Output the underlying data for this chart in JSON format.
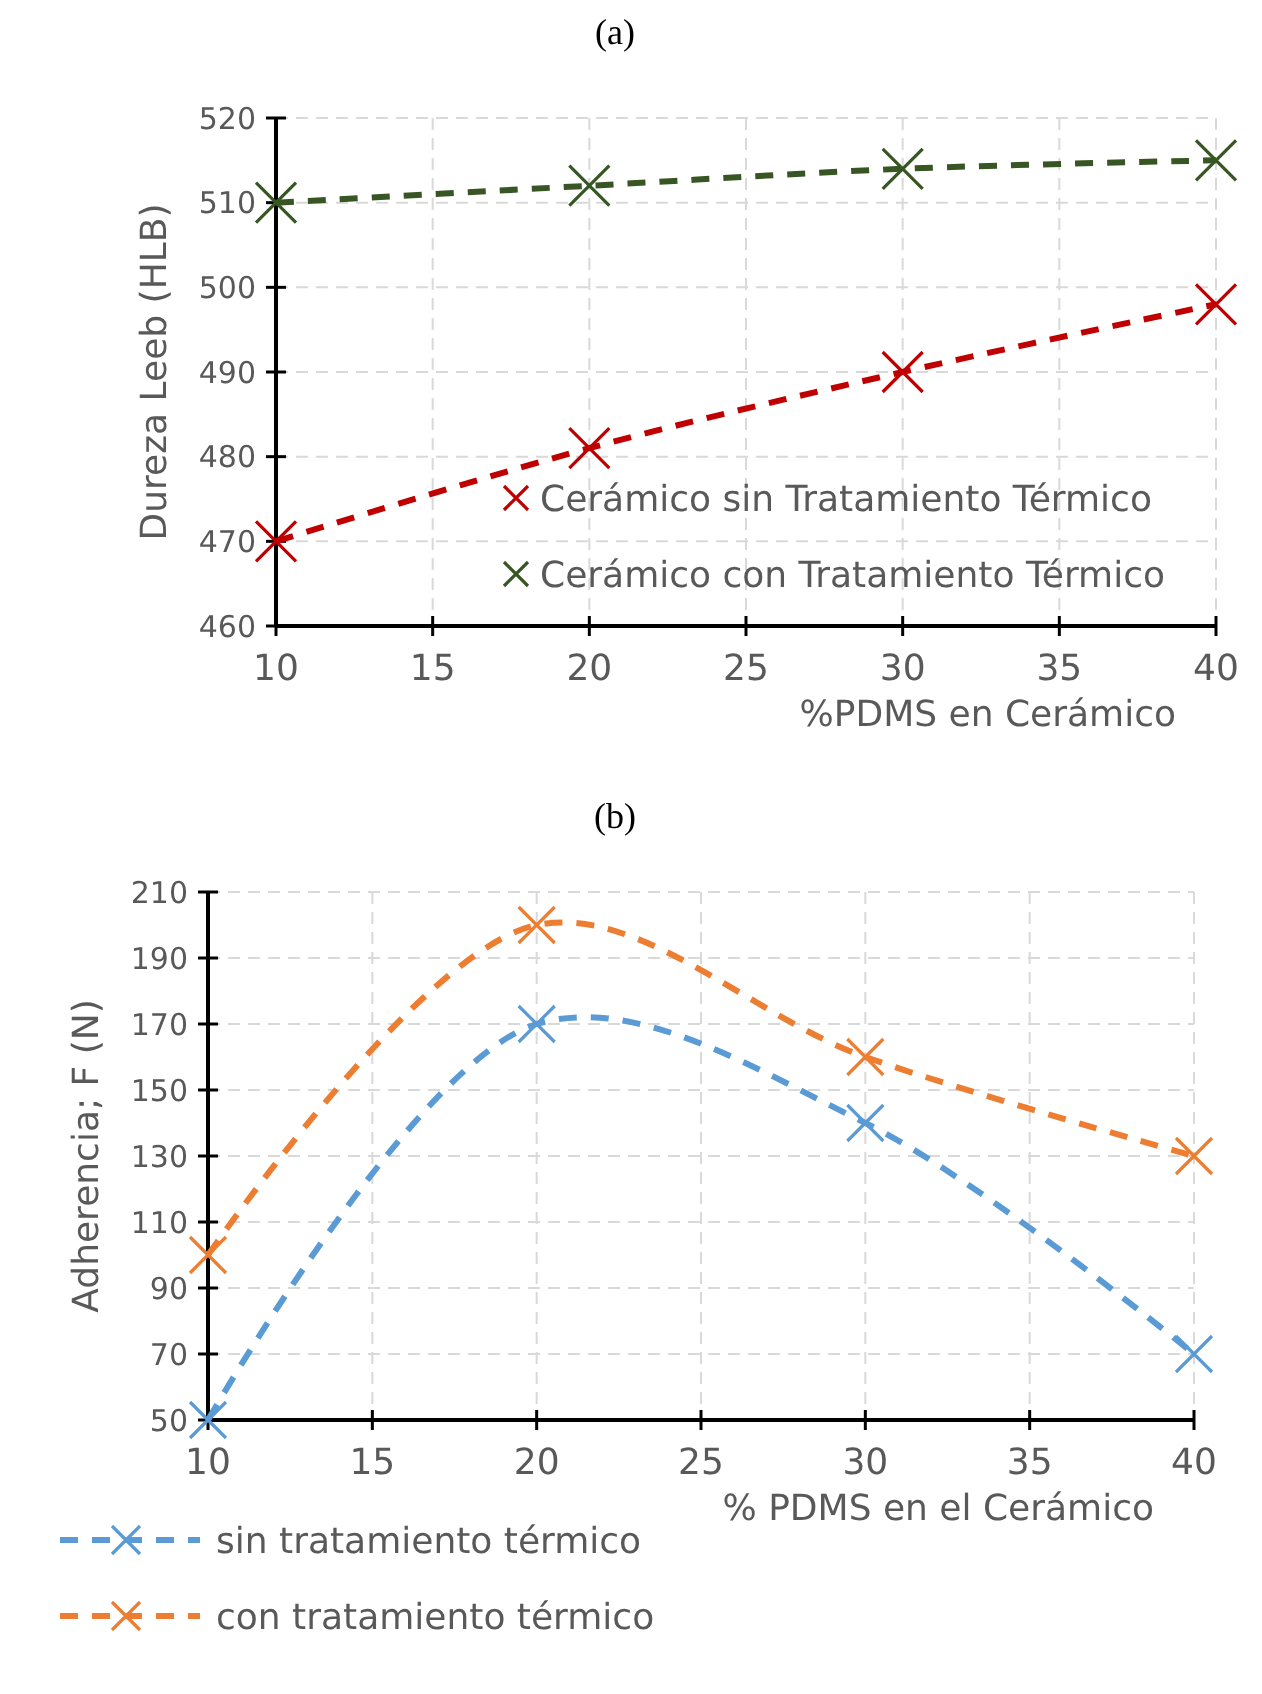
{
  "chart_data": [
    {
      "type": "line",
      "title": "(a)",
      "xlabel": "%PDMS en Cerámico",
      "ylabel": "Dureza Leeb (HLB)",
      "x": [
        10,
        20,
        30,
        40
      ],
      "xlim": [
        10,
        40
      ],
      "xticks": [
        10,
        15,
        20,
        25,
        30,
        35,
        40
      ],
      "ylim": [
        460,
        520
      ],
      "yticks": [
        460,
        470,
        480,
        490,
        500,
        510,
        520
      ],
      "grid": true,
      "legend": "bottom right",
      "line_style": "dashed",
      "series": [
        {
          "name": "Cerámico sin Tratamiento Térmico",
          "color": "#c00000",
          "marker": "cross",
          "values": [
            470,
            481,
            490,
            498
          ]
        },
        {
          "name": "Cerámico con Tratamiento Térmico",
          "color": "#375623",
          "marker": "cross",
          "values": [
            510,
            512,
            514,
            515
          ]
        }
      ]
    },
    {
      "type": "line",
      "title": "(b)",
      "xlabel": "% PDMS en el Cerámico",
      "ylabel": "Adherencia; F (N)",
      "x": [
        10,
        20,
        30,
        40
      ],
      "xlim": [
        10,
        40
      ],
      "xticks": [
        10,
        15,
        20,
        25,
        30,
        35,
        40
      ],
      "ylim": [
        50,
        210
      ],
      "yticks": [
        50,
        70,
        90,
        110,
        130,
        150,
        170,
        190,
        210
      ],
      "grid": true,
      "legend": "bottom",
      "line_style": "dashed",
      "series": [
        {
          "name": "sin tratamiento térmico",
          "color": "#5b9bd5",
          "marker": "cross",
          "values": [
            50,
            170,
            140,
            70
          ]
        },
        {
          "name": "con tratamiento térmico",
          "color": "#ed7d31",
          "marker": "cross",
          "values": [
            100,
            200,
            160,
            130
          ]
        }
      ]
    }
  ]
}
